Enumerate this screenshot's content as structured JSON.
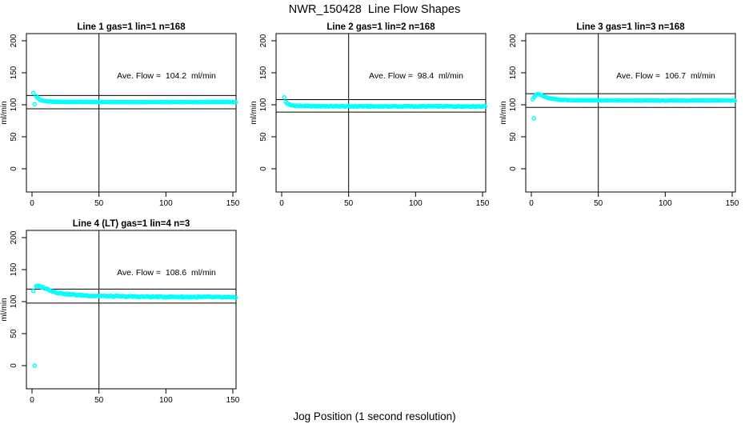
{
  "page_title": "NWR_150428  Line Flow Shapes",
  "x_axis_shared_label": "Jog Position (1 second resolution)",
  "colors": {
    "marker": "#00FFFF",
    "axis": "#000000",
    "background": "#FFFFFF"
  },
  "chart_data": [
    {
      "type": "scatter",
      "title": "Line 1 gas=1 lin=1 n=168",
      "ylabel": "ml/min",
      "annotation": "Ave. Flow =  104.2  ml/min",
      "ave_flow_ml_min": 104.2,
      "xlim": [
        0,
        152
      ],
      "ylim": [
        0,
        200
      ],
      "x_ticks": [
        0,
        50,
        100,
        150
      ],
      "y_ticks": [
        0,
        50,
        100,
        150,
        200
      ],
      "ref_lines_y": [
        114.6,
        93.8
      ],
      "vline_x": 50,
      "x_start": 3,
      "x_end": 152,
      "noise": 0.25,
      "series_profile": [
        [
          3,
          113.5
        ],
        [
          4,
          111.5
        ],
        [
          5,
          109.5
        ],
        [
          6,
          108
        ],
        [
          8,
          106.5
        ],
        [
          10,
          105.8
        ],
        [
          13,
          105.2
        ],
        [
          16,
          104.8
        ],
        [
          20,
          104.6
        ],
        [
          30,
          104.4
        ],
        [
          60,
          104.3
        ],
        [
          100,
          104.2
        ],
        [
          152,
          104.3
        ]
      ],
      "outliers": [
        [
          1,
          118.5
        ],
        [
          2,
          101
        ]
      ]
    },
    {
      "type": "scatter",
      "title": "Line 2 gas=1 lin=2 n=168",
      "ylabel": "ml/min",
      "annotation": "Ave. Flow =  98.4  ml/min",
      "ave_flow_ml_min": 98.4,
      "xlim": [
        0,
        152
      ],
      "ylim": [
        0,
        200
      ],
      "x_ticks": [
        0,
        50,
        100,
        150
      ],
      "y_ticks": [
        0,
        50,
        100,
        150,
        200
      ],
      "ref_lines_y": [
        108.2,
        88.6
      ],
      "vline_x": 50,
      "x_start": 3,
      "x_end": 152,
      "noise": 0.6,
      "series_profile": [
        [
          3,
          104.5
        ],
        [
          4,
          102.5
        ],
        [
          5,
          101
        ],
        [
          6,
          100
        ],
        [
          8,
          99
        ],
        [
          10,
          98.6
        ],
        [
          14,
          98.2
        ],
        [
          20,
          98
        ],
        [
          30,
          97.8
        ],
        [
          60,
          97.6
        ],
        [
          100,
          97.5
        ],
        [
          152,
          97.6
        ]
      ],
      "outliers": [
        [
          2,
          111.5
        ]
      ]
    },
    {
      "type": "scatter",
      "title": "Line 3 gas=1 lin=3 n=168",
      "ylabel": "ml/min",
      "annotation": "Ave. Flow =  106.7  ml/min",
      "ave_flow_ml_min": 106.7,
      "xlim": [
        0,
        152
      ],
      "ylim": [
        0,
        200
      ],
      "x_ticks": [
        0,
        50,
        100,
        150
      ],
      "y_ticks": [
        0,
        50,
        100,
        150,
        200
      ],
      "ref_lines_y": [
        117.4,
        96.0
      ],
      "vline_x": 50,
      "x_start": 1,
      "x_end": 152,
      "noise": 0.3,
      "series_profile": [
        [
          1,
          109
        ],
        [
          2,
          112
        ],
        [
          3,
          114.5
        ],
        [
          4,
          116
        ],
        [
          5,
          116.5
        ],
        [
          6,
          116
        ],
        [
          8,
          114.5
        ],
        [
          10,
          112.5
        ],
        [
          12,
          111
        ],
        [
          15,
          109.5
        ],
        [
          20,
          108.2
        ],
        [
          30,
          107.2
        ],
        [
          50,
          106.8
        ],
        [
          100,
          106.5
        ],
        [
          152,
          106.8
        ]
      ],
      "outliers": [
        [
          2,
          79
        ]
      ]
    },
    {
      "type": "scatter",
      "title": "Line 4 (LT) gas=1 lin=4 n=3",
      "ylabel": "ml/min",
      "annotation": "Ave. Flow =  108.6  ml/min",
      "ave_flow_ml_min": 108.6,
      "xlim": [
        0,
        152
      ],
      "ylim": [
        0,
        200
      ],
      "x_ticks": [
        0,
        50,
        100,
        150
      ],
      "y_ticks": [
        0,
        50,
        100,
        150,
        200
      ],
      "ref_lines_y": [
        119.5,
        97.7
      ],
      "vline_x": 50,
      "x_start": 3,
      "x_end": 152,
      "noise": 0.9,
      "series_profile": [
        [
          3,
          123.5
        ],
        [
          4,
          124.5
        ],
        [
          5,
          124
        ],
        [
          7,
          123
        ],
        [
          9,
          121.5
        ],
        [
          12,
          119
        ],
        [
          15,
          116.5
        ],
        [
          18,
          114.5
        ],
        [
          22,
          113
        ],
        [
          27,
          111.5
        ],
        [
          33,
          110.5
        ],
        [
          40,
          109.5
        ],
        [
          50,
          108.8
        ],
        [
          62,
          108.2
        ],
        [
          78,
          107.8
        ],
        [
          95,
          107.4
        ],
        [
          115,
          107.2
        ],
        [
          135,
          107
        ],
        [
          152,
          106.3
        ]
      ],
      "outliers": [
        [
          1,
          116.5
        ],
        [
          2,
          0
        ]
      ]
    }
  ]
}
